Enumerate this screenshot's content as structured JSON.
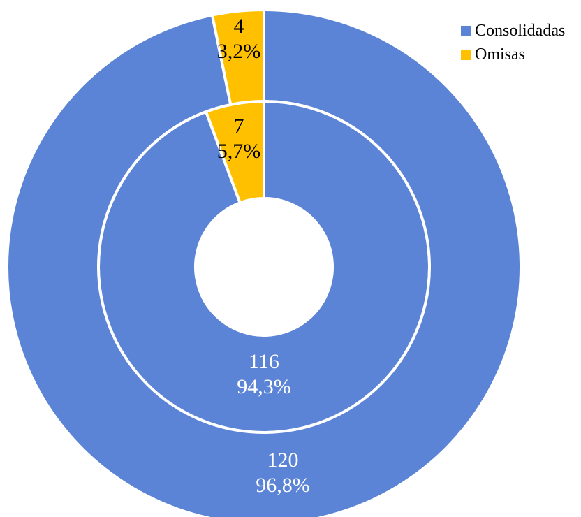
{
  "chart_data": {
    "type": "donut",
    "categories": [
      "Consolidadas",
      "Omisas"
    ],
    "colors": [
      "#5B83D6",
      "#FFC000"
    ],
    "series": [
      {
        "ring": "inner",
        "values": [
          116,
          7
        ],
        "labels": [
          {
            "value": "116",
            "percent": "94,3%"
          },
          {
            "value": "7",
            "percent": "5,7%"
          }
        ]
      },
      {
        "ring": "outer",
        "values": [
          120,
          4
        ],
        "labels": [
          {
            "value": "120",
            "percent": "96,8%"
          },
          {
            "value": "4",
            "percent": "3,2%"
          }
        ]
      }
    ],
    "legend": {
      "position": "top-right",
      "items": [
        "Consolidadas",
        "Omisas"
      ]
    }
  }
}
